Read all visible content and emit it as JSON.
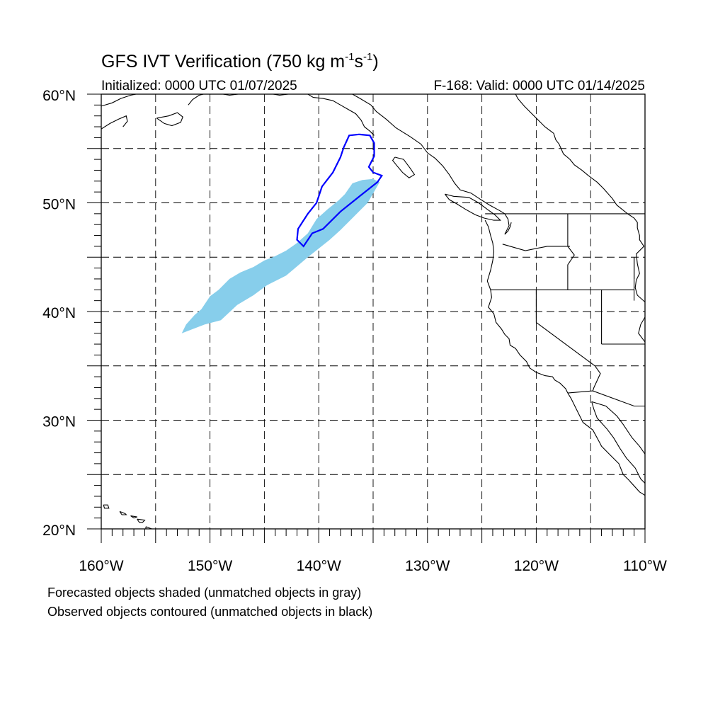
{
  "title": {
    "main": "GFS IVT Verification (750 kg m",
    "exp1": "-1",
    "mid": "s",
    "exp2": "-1",
    "end": ")"
  },
  "subtitle_left": "Initialized: 0000 UTC 01/07/2025",
  "subtitle_right": "F-168: Valid: 0000 UTC 01/14/2025",
  "lat_labels": [
    "60°N",
    "50°N",
    "40°N",
    "30°N",
    "20°N"
  ],
  "lon_labels": [
    "160°W",
    "150°W",
    "140°W",
    "130°W",
    "120°W",
    "110°W"
  ],
  "lat_values": [
    60,
    50,
    40,
    30,
    20
  ],
  "lon_values": [
    -160,
    -150,
    -140,
    -130,
    -120,
    -110
  ],
  "notes": [
    "Forecasted objects shaded (unmatched objects in gray)",
    "Observed objects contoured (unmatched objects in black)"
  ],
  "colors": {
    "forecast_fill": "#87ceeb",
    "observed_contour": "#0000ff"
  },
  "map": {
    "lon_range": [
      -160,
      -110
    ],
    "lat_range": [
      20,
      60
    ],
    "grid_lines": "dashed",
    "forecast_object": [
      [
        -152.6,
        38.0
      ],
      [
        -150.5,
        38.8
      ],
      [
        -149.0,
        39.2
      ],
      [
        -147.5,
        40.6
      ],
      [
        -146.0,
        41.5
      ],
      [
        -144.8,
        42.4
      ],
      [
        -143.0,
        43.3
      ],
      [
        -141.0,
        45.0
      ],
      [
        -140.0,
        45.8
      ],
      [
        -139.0,
        46.6
      ],
      [
        -138.0,
        47.5
      ],
      [
        -137.0,
        48.5
      ],
      [
        -135.5,
        50.0
      ],
      [
        -134.4,
        51.9
      ],
      [
        -135.0,
        52.2
      ],
      [
        -136.0,
        52.1
      ],
      [
        -136.9,
        51.8
      ],
      [
        -137.6,
        50.8
      ],
      [
        -138.2,
        50.2
      ],
      [
        -139.2,
        49.4
      ],
      [
        -140.2,
        48.5
      ],
      [
        -141.0,
        47.2
      ],
      [
        -142.0,
        46.3
      ],
      [
        -143.0,
        45.6
      ],
      [
        -144.0,
        45.1
      ],
      [
        -145.0,
        44.7
      ],
      [
        -146.0,
        44.1
      ],
      [
        -147.2,
        43.6
      ],
      [
        -148.2,
        43.0
      ],
      [
        -149.2,
        42.0
      ],
      [
        -150.0,
        41.4
      ],
      [
        -150.8,
        40.2
      ],
      [
        -151.4,
        39.7
      ],
      [
        -152.2,
        38.8
      ]
    ],
    "observed_object": [
      [
        -137.2,
        56.2
      ],
      [
        -136.3,
        56.3
      ],
      [
        -135.3,
        56.2
      ],
      [
        -134.9,
        55.5
      ],
      [
        -134.9,
        54.3
      ],
      [
        -135.4,
        53.3
      ],
      [
        -135.0,
        52.8
      ],
      [
        -134.2,
        52.5
      ],
      [
        -134.6,
        51.9
      ],
      [
        -136.0,
        50.8
      ],
      [
        -138.0,
        49.2
      ],
      [
        -139.6,
        47.6
      ],
      [
        -140.6,
        47.2
      ],
      [
        -141.4,
        46.0
      ],
      [
        -142.0,
        46.6
      ],
      [
        -141.9,
        47.6
      ],
      [
        -141.0,
        49.0
      ],
      [
        -140.2,
        50.0
      ],
      [
        -139.7,
        51.5
      ],
      [
        -138.7,
        52.8
      ],
      [
        -138.0,
        54.2
      ],
      [
        -137.7,
        55.1
      ]
    ]
  }
}
